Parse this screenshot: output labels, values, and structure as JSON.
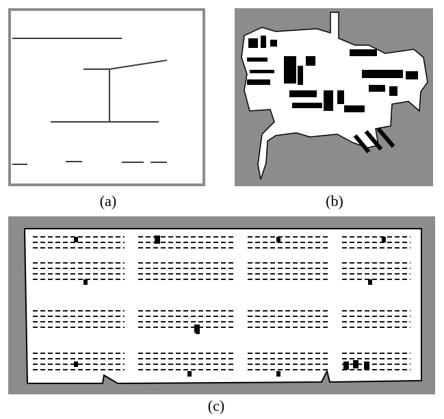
{
  "figure": {
    "panels": [
      {
        "id": "a",
        "caption": "(a)",
        "kind": "simple line map"
      },
      {
        "id": "b",
        "caption": "(b)",
        "kind": "occupancy grid map"
      },
      {
        "id": "c",
        "caption": "(c)",
        "kind": "warehouse shelf map"
      }
    ]
  },
  "colors": {
    "background_gray": "#8c8c8c",
    "free_space": "#ffffff",
    "obstacle": "#000000"
  }
}
